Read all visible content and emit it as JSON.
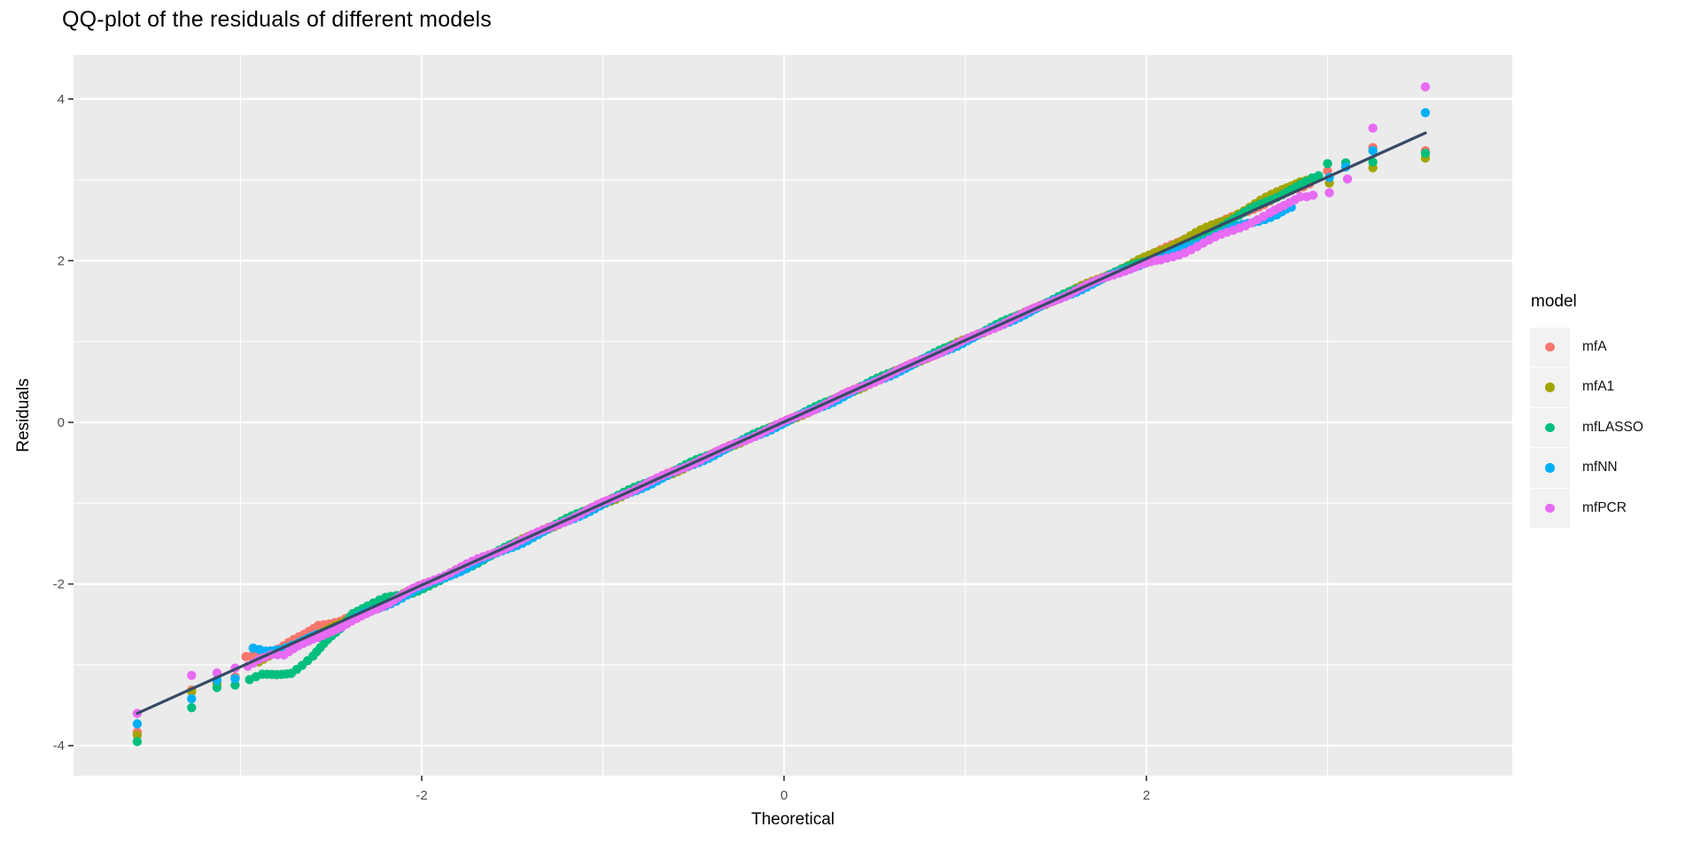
{
  "chart_data": {
    "type": "scatter",
    "title": "QQ-plot of the residuals of different models",
    "xlabel": "Theoretical",
    "ylabel": "Residuals",
    "xlim": [
      -3.92,
      4.02
    ],
    "ylim": [
      -4.37,
      4.55
    ],
    "grid": true,
    "panel_bg": "#EBEBEB",
    "grid_color": "#FFFFFF",
    "tick_label_color": "#4D4D4D",
    "x_ticks": {
      "values": [
        -2,
        0,
        2
      ],
      "labels": [
        "-2",
        "0",
        "2"
      ]
    },
    "y_ticks": {
      "values": [
        4,
        2,
        0,
        -2,
        -4
      ],
      "labels": [
        "4",
        "2",
        "0",
        "-2",
        "-4"
      ]
    },
    "x_minor": [
      -3,
      -1,
      1,
      3
    ],
    "y_minor": [
      3,
      1,
      -1,
      -3
    ],
    "reference_line": {
      "x1": -3.57,
      "y1": -3.6,
      "x2": 3.54,
      "y2": 3.58,
      "color": "#374A66"
    },
    "legend": {
      "title": "model",
      "position": "right",
      "key_bg": "#F2F2F2"
    },
    "series": [
      {
        "name": "mfA",
        "color": "#F8766D",
        "band": [
          [
            -2.97,
            -2.9
          ],
          [
            -2.82,
            -2.84
          ],
          [
            -2.65,
            -2.63
          ],
          [
            -2.57,
            -2.5
          ],
          [
            -2.45,
            -2.46
          ],
          [
            -2.3,
            -2.33
          ],
          [
            -2.1,
            -2.12
          ],
          [
            -1.9,
            -1.92
          ],
          [
            -1.7,
            -1.73
          ],
          [
            -1.5,
            -1.52
          ],
          [
            -1.3,
            -1.31
          ],
          [
            -1.1,
            -1.11
          ],
          [
            -0.9,
            -0.9
          ],
          [
            -0.7,
            -0.7
          ],
          [
            -0.5,
            -0.5
          ],
          [
            -0.3,
            -0.3
          ],
          [
            -0.1,
            -0.1
          ],
          [
            0.1,
            0.1
          ],
          [
            0.3,
            0.31
          ],
          [
            0.5,
            0.51
          ],
          [
            0.7,
            0.71
          ],
          [
            0.9,
            0.91
          ],
          [
            1.1,
            1.11
          ],
          [
            1.3,
            1.32
          ],
          [
            1.5,
            1.52
          ],
          [
            1.7,
            1.72
          ],
          [
            1.9,
            1.93
          ],
          [
            2.05,
            2.09
          ],
          [
            2.2,
            2.26
          ],
          [
            2.35,
            2.4
          ],
          [
            2.5,
            2.57
          ],
          [
            2.65,
            2.7
          ],
          [
            2.8,
            2.86
          ],
          [
            2.9,
            2.95
          ]
        ],
        "points": [
          [
            -3.57,
            -3.83
          ],
          [
            -3.27,
            -3.31
          ],
          [
            -3.13,
            -3.22
          ],
          [
            -3.03,
            -3.15
          ],
          [
            3.0,
            3.11
          ],
          [
            3.25,
            3.4
          ],
          [
            3.54,
            3.36
          ]
        ]
      },
      {
        "name": "mfA1",
        "color": "#A3A500",
        "band": [
          [
            -2.9,
            -2.96
          ],
          [
            -2.74,
            -2.79
          ],
          [
            -2.6,
            -2.64
          ],
          [
            -2.45,
            -2.5
          ],
          [
            -2.3,
            -2.34
          ],
          [
            -2.1,
            -2.13
          ],
          [
            -1.9,
            -1.93
          ],
          [
            -1.7,
            -1.72
          ],
          [
            -1.5,
            -1.51
          ],
          [
            -1.3,
            -1.31
          ],
          [
            -1.1,
            -1.11
          ],
          [
            -0.9,
            -0.91
          ],
          [
            -0.7,
            -0.71
          ],
          [
            -0.5,
            -0.51
          ],
          [
            -0.3,
            -0.3
          ],
          [
            -0.1,
            -0.1
          ],
          [
            0.1,
            0.1
          ],
          [
            0.3,
            0.3
          ],
          [
            0.5,
            0.51
          ],
          [
            0.7,
            0.71
          ],
          [
            0.9,
            0.92
          ],
          [
            1.1,
            1.12
          ],
          [
            1.3,
            1.32
          ],
          [
            1.5,
            1.53
          ],
          [
            1.7,
            1.74
          ],
          [
            1.9,
            1.94
          ],
          [
            2.1,
            2.15
          ],
          [
            2.3,
            2.37
          ],
          [
            2.45,
            2.52
          ],
          [
            2.6,
            2.7
          ],
          [
            2.75,
            2.88
          ],
          [
            2.85,
            2.99
          ],
          [
            2.95,
            3.03
          ]
        ],
        "points": [
          [
            -3.57,
            -3.87
          ],
          [
            -3.27,
            -3.33
          ],
          [
            -3.13,
            -3.23
          ],
          [
            3.01,
            2.96
          ],
          [
            3.25,
            3.15
          ],
          [
            3.54,
            3.27
          ]
        ]
      },
      {
        "name": "mfLASSO",
        "color": "#00BF7D",
        "band": [
          [
            -2.95,
            -3.19
          ],
          [
            -2.88,
            -3.13
          ],
          [
            -2.8,
            -3.12
          ],
          [
            -2.72,
            -3.09
          ],
          [
            -2.66,
            -3.0
          ],
          [
            -2.6,
            -2.9
          ],
          [
            -2.52,
            -2.7
          ],
          [
            -2.45,
            -2.55
          ],
          [
            -2.38,
            -2.35
          ],
          [
            -2.3,
            -2.27
          ],
          [
            -2.2,
            -2.18
          ],
          [
            -2.05,
            -2.1
          ],
          [
            -1.9,
            -1.97
          ],
          [
            -1.75,
            -1.8
          ],
          [
            -1.6,
            -1.62
          ],
          [
            -1.4,
            -1.41
          ],
          [
            -1.2,
            -1.2
          ],
          [
            -1.0,
            -0.99
          ],
          [
            -0.8,
            -0.79
          ],
          [
            -0.6,
            -0.59
          ],
          [
            -0.4,
            -0.39
          ],
          [
            -0.2,
            -0.19
          ],
          [
            0.0,
            0.01
          ],
          [
            0.2,
            0.21
          ],
          [
            0.4,
            0.42
          ],
          [
            0.6,
            0.62
          ],
          [
            0.8,
            0.82
          ],
          [
            1.0,
            1.02
          ],
          [
            1.2,
            1.23
          ],
          [
            1.4,
            1.43
          ],
          [
            1.6,
            1.63
          ],
          [
            1.8,
            1.83
          ],
          [
            1.95,
            1.96
          ],
          [
            2.1,
            2.08
          ],
          [
            2.2,
            2.15
          ],
          [
            2.3,
            2.28
          ],
          [
            2.45,
            2.48
          ],
          [
            2.6,
            2.66
          ],
          [
            2.75,
            2.83
          ],
          [
            2.88,
            2.97
          ],
          [
            2.95,
            3.05
          ]
        ],
        "points": [
          [
            -3.57,
            -3.95
          ],
          [
            -3.27,
            -3.53
          ],
          [
            -3.13,
            -3.28
          ],
          [
            -3.03,
            -3.25
          ],
          [
            3.0,
            3.2
          ],
          [
            3.1,
            3.21
          ],
          [
            3.25,
            3.22
          ],
          [
            3.54,
            3.33
          ]
        ]
      },
      {
        "name": "mfNN",
        "color": "#00B0F6",
        "band": [
          [
            -2.93,
            -2.8
          ],
          [
            -2.86,
            -2.82
          ],
          [
            -2.78,
            -2.8
          ],
          [
            -2.68,
            -2.74
          ],
          [
            -2.58,
            -2.63
          ],
          [
            -2.48,
            -2.54
          ],
          [
            -2.35,
            -2.4
          ],
          [
            -2.2,
            -2.27
          ],
          [
            -2.05,
            -2.09
          ],
          [
            -1.9,
            -1.95
          ],
          [
            -1.7,
            -1.74
          ],
          [
            -1.5,
            -1.54
          ],
          [
            -1.3,
            -1.33
          ],
          [
            -1.1,
            -1.12
          ],
          [
            -0.9,
            -0.92
          ],
          [
            -0.7,
            -0.72
          ],
          [
            -0.5,
            -0.52
          ],
          [
            -0.3,
            -0.31
          ],
          [
            -0.1,
            -0.11
          ],
          [
            0.1,
            0.09
          ],
          [
            0.3,
            0.29
          ],
          [
            0.5,
            0.5
          ],
          [
            0.7,
            0.7
          ],
          [
            0.9,
            0.9
          ],
          [
            1.1,
            1.1
          ],
          [
            1.3,
            1.31
          ],
          [
            1.5,
            1.51
          ],
          [
            1.7,
            1.71
          ],
          [
            1.9,
            1.9
          ],
          [
            2.05,
            2.03
          ],
          [
            2.2,
            2.15
          ],
          [
            2.35,
            2.28
          ],
          [
            2.5,
            2.42
          ],
          [
            2.62,
            2.5
          ],
          [
            2.72,
            2.57
          ],
          [
            2.8,
            2.66
          ]
        ],
        "points": [
          [
            -3.57,
            -3.73
          ],
          [
            -3.27,
            -3.42
          ],
          [
            -3.13,
            -3.19
          ],
          [
            -3.03,
            -3.17
          ],
          [
            3.01,
            3.03
          ],
          [
            3.1,
            3.16
          ],
          [
            3.25,
            3.36
          ],
          [
            3.54,
            3.83
          ]
        ]
      },
      {
        "name": "mfPCR",
        "color": "#E76BF3",
        "band": [
          [
            -2.96,
            -3.01
          ],
          [
            -2.9,
            -2.92
          ],
          [
            -2.83,
            -2.87
          ],
          [
            -2.76,
            -2.89
          ],
          [
            -2.68,
            -2.77
          ],
          [
            -2.6,
            -2.67
          ],
          [
            -2.52,
            -2.6
          ],
          [
            -2.44,
            -2.54
          ],
          [
            -2.36,
            -2.44
          ],
          [
            -2.28,
            -2.33
          ],
          [
            -2.18,
            -2.23
          ],
          [
            -2.05,
            -2.07
          ],
          [
            -1.9,
            -1.91
          ],
          [
            -1.75,
            -1.76
          ],
          [
            -1.6,
            -1.61
          ],
          [
            -1.45,
            -1.46
          ],
          [
            -1.3,
            -1.31
          ],
          [
            -1.15,
            -1.16
          ],
          [
            -1.0,
            -1.0
          ],
          [
            -0.85,
            -0.85
          ],
          [
            -0.7,
            -0.7
          ],
          [
            -0.55,
            -0.55
          ],
          [
            -0.4,
            -0.4
          ],
          [
            -0.25,
            -0.25
          ],
          [
            -0.1,
            -0.1
          ],
          [
            0.05,
            0.05
          ],
          [
            0.2,
            0.2
          ],
          [
            0.35,
            0.36
          ],
          [
            0.5,
            0.51
          ],
          [
            0.65,
            0.66
          ],
          [
            0.8,
            0.81
          ],
          [
            0.95,
            0.96
          ],
          [
            1.1,
            1.11
          ],
          [
            1.25,
            1.27
          ],
          [
            1.4,
            1.42
          ],
          [
            1.55,
            1.57
          ],
          [
            1.7,
            1.72
          ],
          [
            1.85,
            1.86
          ],
          [
            1.97,
            1.95
          ],
          [
            2.08,
            2.0
          ],
          [
            2.18,
            2.08
          ],
          [
            2.28,
            2.18
          ],
          [
            2.38,
            2.28
          ],
          [
            2.48,
            2.38
          ],
          [
            2.58,
            2.48
          ],
          [
            2.68,
            2.58
          ],
          [
            2.76,
            2.67
          ],
          [
            2.85,
            2.8
          ],
          [
            2.92,
            2.81
          ]
        ],
        "points": [
          [
            -3.57,
            -3.6
          ],
          [
            -3.27,
            -3.13
          ],
          [
            -3.13,
            -3.1
          ],
          [
            -3.03,
            -3.04
          ],
          [
            3.01,
            2.84
          ],
          [
            3.11,
            3.01
          ],
          [
            3.25,
            3.64
          ],
          [
            3.54,
            4.15
          ]
        ]
      }
    ]
  }
}
